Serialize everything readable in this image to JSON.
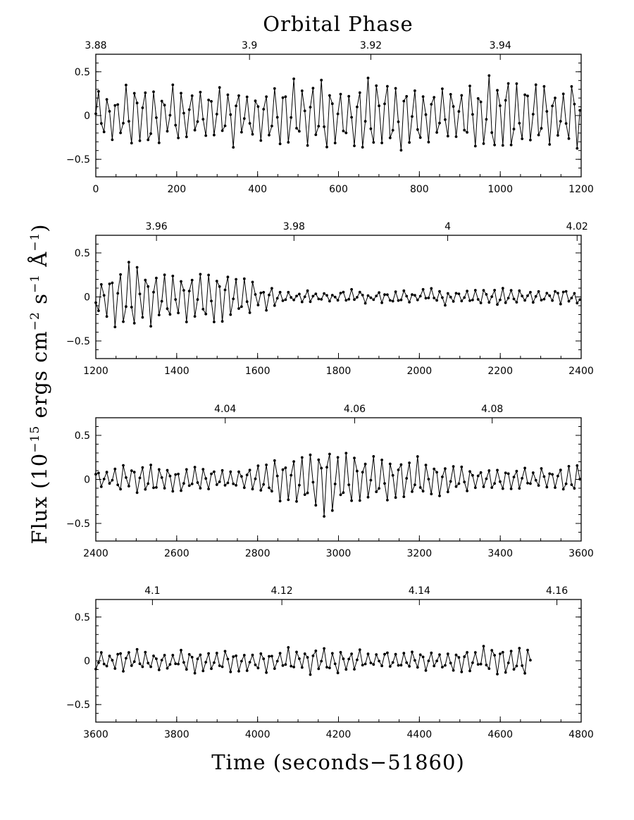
{
  "figure": {
    "top_title": "Orbital Phase",
    "ylabel": {
      "part1": "Flux (10",
      "exp1": "−15",
      "part2": " ergs cm",
      "exp2": "−2",
      "part3": " s",
      "exp3": "−1",
      "part4": " Å",
      "exp4": "−1",
      "part5": ")"
    },
    "xlabel": "Time (seconds−51860)"
  },
  "chart_data": [
    {
      "type": "line",
      "xlim": [
        0,
        1200
      ],
      "ylim": [
        -0.7,
        0.7
      ],
      "x_ticks": [
        0,
        200,
        400,
        600,
        800,
        1000,
        1200
      ],
      "y_ticks": [
        -0.5,
        0,
        0.5
      ],
      "phase_ticks": [
        {
          "label": "3.88",
          "time": 0
        },
        {
          "label": "3.9",
          "time": 380
        },
        {
          "label": "3.92",
          "time": 680
        },
        {
          "label": "3.94",
          "time": 1000
        }
      ],
      "series": [
        {
          "amplitude": [
            0.2,
            0.24,
            0.27,
            0.3,
            0.34,
            0.3,
            0.28,
            0.26,
            0.25,
            0.24,
            0.28,
            0.29,
            0.26,
            0.24,
            0.23,
            0.29,
            0.36,
            0.38,
            0.4,
            0.36,
            0.35,
            0.3,
            0.34,
            0.38,
            0.4,
            0.37,
            0.34,
            0.3,
            0.28,
            0.25,
            0.28,
            0.34,
            0.36,
            0.4,
            0.44,
            0.4,
            0.34,
            0.32,
            0.3,
            0.33,
            0.32
          ],
          "period": 23,
          "step": 6.8,
          "seed": 1
        }
      ]
    },
    {
      "type": "line",
      "xlim": [
        1200,
        2400
      ],
      "ylim": [
        -0.7,
        0.7
      ],
      "x_ticks": [
        1200,
        1400,
        1600,
        1800,
        2000,
        2200,
        2400
      ],
      "y_ticks": [
        -0.5,
        0,
        0.5
      ],
      "phase_ticks": [
        {
          "label": "3.96",
          "time": 1350
        },
        {
          "label": "3.98",
          "time": 1690
        },
        {
          "label": "4",
          "time": 2070
        },
        {
          "label": "4.02",
          "time": 2390
        }
      ],
      "series": [
        {
          "amplitude": [
            0.18,
            0.24,
            0.28,
            0.32,
            0.3,
            0.28,
            0.3,
            0.26,
            0.22,
            0.26,
            0.3,
            0.26,
            0.22,
            0.17,
            0.11,
            0.08,
            0.06,
            0.06,
            0.06,
            0.06,
            0.06,
            0.06,
            0.06,
            0.06,
            0.06,
            0.06,
            0.06,
            0.06,
            0.06,
            0.06,
            0.07,
            0.07,
            0.08,
            0.08,
            0.08,
            0.08,
            0.08,
            0.07,
            0.07,
            0.07,
            0.08
          ],
          "period": 22,
          "step": 6.8,
          "seed": 2
        }
      ]
    },
    {
      "type": "line",
      "xlim": [
        2400,
        3600
      ],
      "ylim": [
        -0.7,
        0.7
      ],
      "x_ticks": [
        2400,
        2600,
        2800,
        3000,
        3200,
        3400,
        3600
      ],
      "y_ticks": [
        -0.5,
        0,
        0.5
      ],
      "phase_ticks": [
        {
          "label": "4.04",
          "time": 2720
        },
        {
          "label": "4.06",
          "time": 3040
        },
        {
          "label": "4.08",
          "time": 3380
        }
      ],
      "series": [
        {
          "amplitude": [
            0.08,
            0.1,
            0.12,
            0.14,
            0.15,
            0.15,
            0.14,
            0.12,
            0.12,
            0.1,
            0.1,
            0.1,
            0.1,
            0.12,
            0.16,
            0.2,
            0.26,
            0.3,
            0.34,
            0.38,
            0.34,
            0.3,
            0.26,
            0.24,
            0.24,
            0.24,
            0.22,
            0.2,
            0.18,
            0.16,
            0.14,
            0.12,
            0.1,
            0.1,
            0.1,
            0.1,
            0.1,
            0.11,
            0.12,
            0.14,
            0.16
          ],
          "period": 22,
          "step": 6.8,
          "seed": 3
        }
      ]
    },
    {
      "type": "line",
      "xlim": [
        3600,
        4800
      ],
      "ylim": [
        -0.7,
        0.7
      ],
      "x_ticks": [
        3600,
        3800,
        4000,
        4200,
        4400,
        4600,
        4800
      ],
      "y_ticks": [
        -0.5,
        0,
        0.5
      ],
      "phase_ticks": [
        {
          "label": "4.1",
          "time": 3740
        },
        {
          "label": "4.12",
          "time": 4060
        },
        {
          "label": "4.14",
          "time": 4400
        },
        {
          "label": "4.16",
          "time": 4740
        }
      ],
      "series": [
        {
          "amplitude": [
            0.09,
            0.1,
            0.1,
            0.1,
            0.1,
            0.1,
            0.1,
            0.1,
            0.1,
            0.11,
            0.12,
            0.12,
            0.11,
            0.1,
            0.1,
            0.1,
            0.11,
            0.12,
            0.12,
            0.12,
            0.12,
            0.11,
            0.1,
            0.1,
            0.1,
            0.1,
            0.1,
            0.1,
            0.1,
            0.1,
            0.1,
            0.11,
            0.12,
            0.14,
            0.15,
            0.16,
            0.16,
            0.15,
            0.15,
            0.14,
            0.14
          ],
          "period": 22,
          "step": 6.8,
          "seed": 4,
          "xmax": 4680
        }
      ]
    }
  ]
}
